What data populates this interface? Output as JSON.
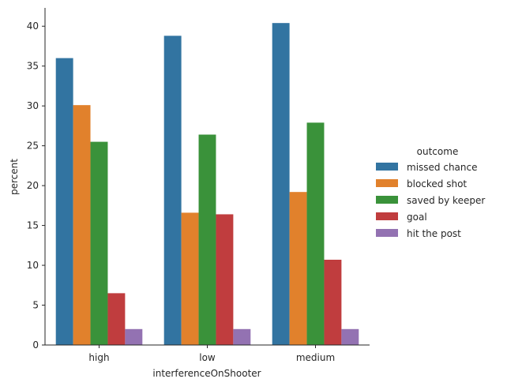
{
  "chart_data": {
    "type": "bar",
    "title": "",
    "xlabel": "interferenceOnShooter",
    "ylabel": "percent",
    "categories": [
      "high",
      "low",
      "medium"
    ],
    "ylim": [
      0,
      42.3
    ],
    "yticks": [
      0,
      5,
      10,
      15,
      20,
      25,
      30,
      35,
      40
    ],
    "grid": false,
    "legend": {
      "title": "outcome",
      "placement": "right"
    },
    "series": [
      {
        "name": "missed chance",
        "color": "#3274a1",
        "values": [
          36.0,
          38.8,
          40.4
        ]
      },
      {
        "name": "blocked shot",
        "color": "#e1812c",
        "values": [
          30.1,
          16.6,
          19.2
        ]
      },
      {
        "name": "saved by keeper",
        "color": "#3a923a",
        "values": [
          25.5,
          26.4,
          27.9
        ]
      },
      {
        "name": "goal",
        "color": "#c03d3e",
        "values": [
          6.5,
          16.4,
          10.7
        ]
      },
      {
        "name": "hit the post",
        "color": "#9372b2",
        "values": [
          2.0,
          2.0,
          2.0
        ]
      }
    ]
  }
}
